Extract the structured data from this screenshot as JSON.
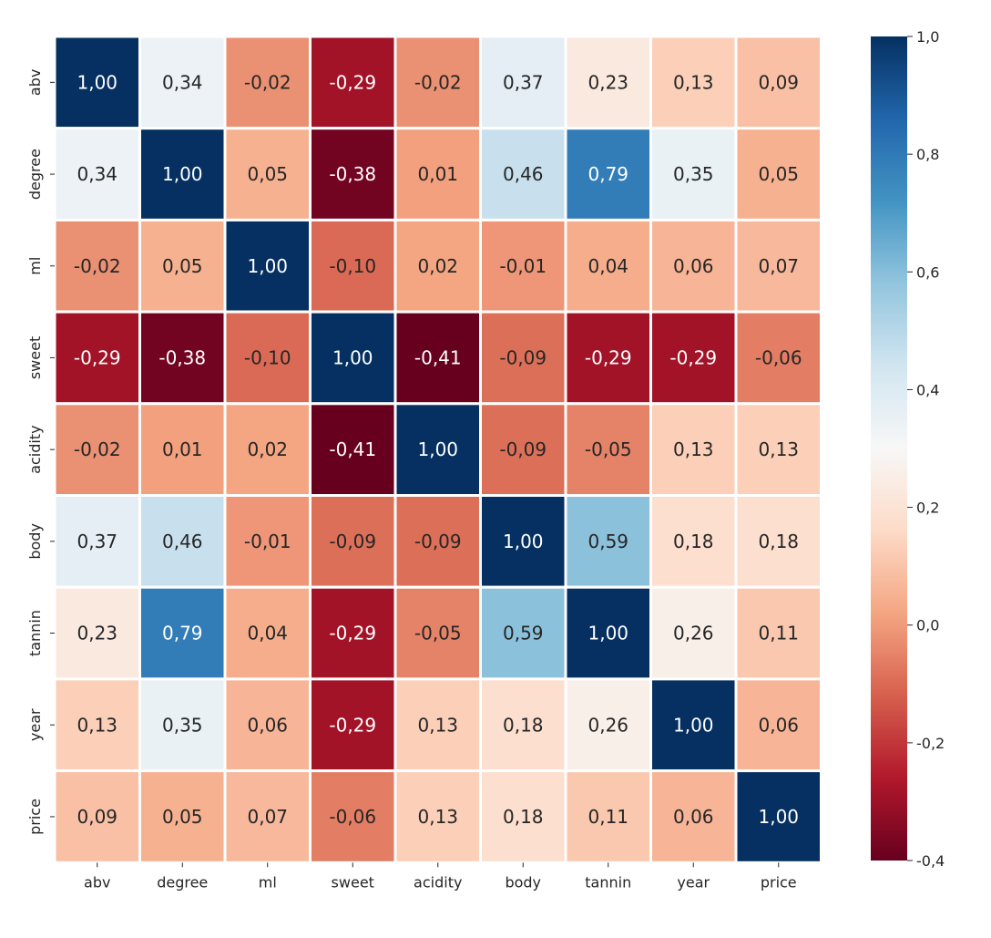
{
  "chart_data": {
    "type": "heatmap",
    "title": "",
    "xlabel": "",
    "ylabel": "",
    "rows": [
      "abv",
      "degree",
      "ml",
      "sweet",
      "acidity",
      "body",
      "tannin",
      "year",
      "price"
    ],
    "columns": [
      "abv",
      "degree",
      "ml",
      "sweet",
      "acidity",
      "body",
      "tannin",
      "year",
      "price"
    ],
    "values": [
      [
        1.0,
        0.34,
        -0.02,
        -0.29,
        -0.02,
        0.37,
        0.23,
        0.13,
        0.09
      ],
      [
        0.34,
        1.0,
        0.05,
        -0.38,
        0.01,
        0.46,
        0.79,
        0.35,
        0.05
      ],
      [
        -0.02,
        0.05,
        1.0,
        -0.1,
        0.02,
        -0.01,
        0.04,
        0.06,
        0.07
      ],
      [
        -0.29,
        -0.38,
        -0.1,
        1.0,
        -0.41,
        -0.09,
        -0.29,
        -0.29,
        -0.06
      ],
      [
        -0.02,
        0.01,
        0.02,
        -0.41,
        1.0,
        -0.09,
        -0.05,
        0.13,
        0.13
      ],
      [
        0.37,
        0.46,
        -0.01,
        -0.09,
        -0.09,
        1.0,
        0.59,
        0.18,
        0.18
      ],
      [
        0.23,
        0.79,
        0.04,
        -0.29,
        -0.05,
        0.59,
        1.0,
        0.26,
        0.11
      ],
      [
        0.13,
        0.35,
        0.06,
        -0.29,
        0.13,
        0.18,
        0.26,
        1.0,
        0.06
      ],
      [
        0.09,
        0.05,
        0.07,
        -0.06,
        0.13,
        0.18,
        0.11,
        0.06,
        1.0
      ]
    ],
    "annotation_format": "2 decimals, comma decimal separator",
    "annotations": [
      [
        "1,00",
        "0,34",
        "-0,02",
        "-0,29",
        "-0,02",
        "0,37",
        "0,23",
        "0,13",
        "0,09"
      ],
      [
        "0,34",
        "1,00",
        "0,05",
        "-0,38",
        "0,01",
        "0,46",
        "0,79",
        "0,35",
        "0,05"
      ],
      [
        "-0,02",
        "0,05",
        "1,00",
        "-0,10",
        "0,02",
        "-0,01",
        "0,04",
        "0,06",
        "0,07"
      ],
      [
        "-0,29",
        "-0,38",
        "-0,10",
        "1,00",
        "-0,41",
        "-0,09",
        "-0,29",
        "-0,29",
        "-0,06"
      ],
      [
        "-0,02",
        "0,01",
        "0,02",
        "-0,41",
        "1,00",
        "-0,09",
        "-0,05",
        "0,13",
        "0,13"
      ],
      [
        "0,37",
        "0,46",
        "-0,01",
        "-0,09",
        "-0,09",
        "1,00",
        "0,59",
        "0,18",
        "0,18"
      ],
      [
        "0,23",
        "0,79",
        "0,04",
        "-0,29",
        "-0,05",
        "0,59",
        "1,00",
        "0,26",
        "0,11"
      ],
      [
        "0,13",
        "0,35",
        "0,06",
        "-0,29",
        "0,13",
        "0,18",
        "0,26",
        "1,00",
        "0,06"
      ],
      [
        "0,09",
        "0,05",
        "0,07",
        "-0,06",
        "0,13",
        "0,18",
        "0,11",
        "0,06",
        "1,00"
      ]
    ],
    "colormap": "RdBu",
    "colormap_stops": [
      "#67001f",
      "#b2182b",
      "#d6604d",
      "#f4a582",
      "#fddbc7",
      "#f7f7f7",
      "#d1e5f0",
      "#92c5de",
      "#4393c3",
      "#2166ac",
      "#053061"
    ],
    "vmin": -0.4,
    "vmax": 1.0,
    "colorbar_ticks": [
      -0.4,
      -0.2,
      0.0,
      0.2,
      0.4,
      0.6,
      0.8,
      1.0
    ],
    "colorbar_tick_labels": [
      "-0,4",
      "-0,2",
      "0,0",
      "0,2",
      "0,4",
      "0,6",
      "0,8",
      "1,0"
    ],
    "cell_border_color": "#ffffff",
    "grid": false,
    "colorbar_position": "right"
  }
}
